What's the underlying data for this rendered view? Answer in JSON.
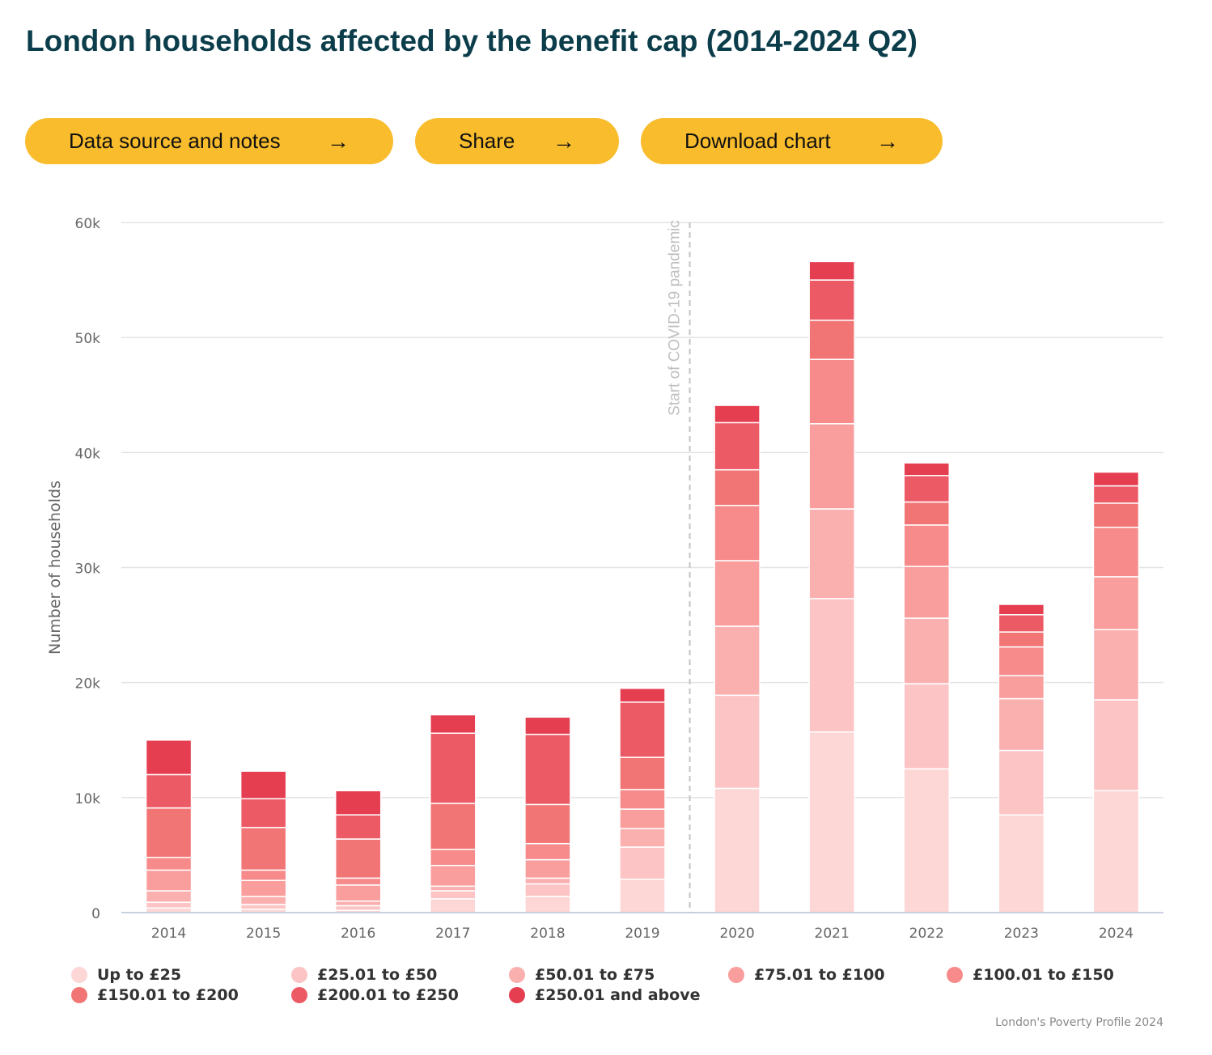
{
  "header": {
    "title": "London households affected by the benefit cap (2014-2024 Q2)"
  },
  "buttons": [
    {
      "label": "Data source and notes",
      "icon": "arrow-right-icon"
    },
    {
      "label": "Share",
      "icon": "arrow-right-icon"
    },
    {
      "label": "Download chart",
      "icon": "arrow-right-icon"
    }
  ],
  "footer": {
    "credit": "London's Poverty Profile 2024"
  },
  "chart_data": {
    "type": "bar",
    "stacked": true,
    "title": "",
    "xlabel": "",
    "ylabel": "Number of households",
    "ylim": [
      0,
      60000
    ],
    "yticks": [
      0,
      10000,
      20000,
      30000,
      40000,
      50000,
      60000
    ],
    "ytick_labels": [
      "0",
      "10k",
      "20k",
      "30k",
      "40k",
      "50k",
      "60k"
    ],
    "grid": true,
    "legend_position": "bottom",
    "categories": [
      "2014",
      "2015",
      "2016",
      "2017",
      "2018",
      "2019",
      "2020",
      "2021",
      "2022",
      "2023",
      "2024"
    ],
    "annotation": {
      "text": "Start of COVID-19 pandemic",
      "between": [
        "2019",
        "2020"
      ]
    },
    "series": [
      {
        "name": "Up to £25",
        "color": "#fdd6d6",
        "values": [
          400,
          300,
          200,
          1200,
          1400,
          2900,
          10800,
          15700,
          12500,
          8500,
          10600
        ]
      },
      {
        "name": "£25.01 to £50",
        "color": "#fcc4c4",
        "values": [
          500,
          400,
          400,
          700,
          1100,
          2800,
          8100,
          11600,
          7400,
          5600,
          7900
        ]
      },
      {
        "name": "£50.01 to £75",
        "color": "#fbb0b0",
        "values": [
          1000,
          700,
          400,
          400,
          500,
          1600,
          6000,
          7800,
          5700,
          4500,
          6100
        ]
      },
      {
        "name": "£75.01 to £100",
        "color": "#f99d9d",
        "values": [
          1800,
          1400,
          1400,
          1800,
          1600,
          1700,
          5700,
          7400,
          4500,
          2000,
          4600
        ]
      },
      {
        "name": "£100.01 to £150",
        "color": "#f78a8a",
        "values": [
          1100,
          900,
          600,
          1400,
          1400,
          1700,
          4800,
          5600,
          3600,
          2500,
          4300
        ]
      },
      {
        "name": "£150.01 to £200",
        "color": "#f27575",
        "values": [
          4300,
          3700,
          3400,
          4000,
          3400,
          2800,
          3100,
          3400,
          2000,
          1300,
          2100
        ]
      },
      {
        "name": "£200.01 to £250",
        "color": "#ec5a66",
        "values": [
          2900,
          2500,
          2100,
          6100,
          6100,
          4800,
          4100,
          3500,
          2300,
          1500,
          1500
        ]
      },
      {
        "name": "£250.01 and above",
        "color": "#e53e51",
        "values": [
          3000,
          2400,
          2100,
          1600,
          1500,
          1200,
          1500,
          1600,
          1100,
          900,
          1200
        ]
      }
    ]
  }
}
